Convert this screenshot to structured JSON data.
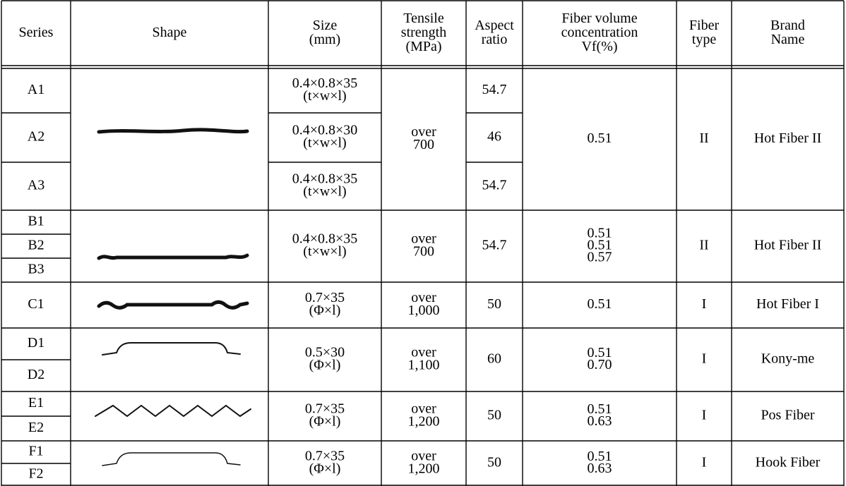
{
  "header": {
    "series": [
      "Series"
    ],
    "shape": [
      "Shape"
    ],
    "size": [
      "Size",
      "(mm)"
    ],
    "tensile": [
      "Tensile",
      "strength",
      "(MPa)"
    ],
    "aspect": [
      "Aspect",
      "ratio"
    ],
    "fiber_volume": [
      "Fiber volume",
      "concentration",
      "Vf(%)"
    ],
    "fiber_type": [
      "Fiber",
      "type"
    ],
    "brand": [
      "Brand",
      "Name"
    ]
  },
  "groups": [
    {
      "series": [
        "A1",
        "A2",
        "A3"
      ],
      "size": [
        [
          "0.4×0.8×35",
          "(t×w×l)"
        ],
        [
          "0.4×0.8×30",
          "(t×w×l)"
        ],
        [
          "0.4×0.8×35",
          "(t×w×l)"
        ]
      ],
      "tensile": [
        "over",
        "700"
      ],
      "aspect": [
        "54.7",
        "46",
        "54.7"
      ],
      "fiber_volume": [
        "0.51"
      ],
      "fiber_type": "II",
      "brand": "Hot Fiber II"
    },
    {
      "series": [
        "B1",
        "B2",
        "B3"
      ],
      "size": [
        "0.4×0.8×35",
        "(t×w×l)"
      ],
      "tensile": [
        "over",
        "700"
      ],
      "aspect": "54.7",
      "fiber_volume": [
        "0.51",
        "0.51",
        "0.57"
      ],
      "fiber_type": "II",
      "brand": "Hot Fiber II"
    },
    {
      "series": [
        "C1"
      ],
      "size": [
        "0.7×35",
        "(Φ×l)"
      ],
      "tensile": [
        "over",
        "1,000"
      ],
      "aspect": "50",
      "fiber_volume": [
        "0.51"
      ],
      "fiber_type": "I",
      "brand": "Hot Fiber I"
    },
    {
      "series": [
        "D1",
        "D2"
      ],
      "size": [
        "0.5×30",
        "(Φ×l)"
      ],
      "tensile": [
        "over",
        "1,100"
      ],
      "aspect": "60",
      "fiber_volume": [
        "0.51",
        "0.70"
      ],
      "fiber_type": "I",
      "brand": "Kony-me"
    },
    {
      "series": [
        "E1",
        "E2"
      ],
      "size": [
        "0.7×35",
        "(Φ×l)"
      ],
      "tensile": [
        "over",
        "1,200"
      ],
      "aspect": "50",
      "fiber_volume": [
        "0.51",
        "0.63"
      ],
      "fiber_type": "I",
      "brand": "Pos Fiber"
    },
    {
      "series": [
        "F1",
        "F2"
      ],
      "size": [
        "0.7×35",
        "(Φ×l)"
      ],
      "tensile": [
        "over",
        "1,200"
      ],
      "aspect": "50",
      "fiber_volume": [
        "0.51",
        "0.63"
      ],
      "fiber_type": "I",
      "brand": "Hook Fiber"
    }
  ]
}
